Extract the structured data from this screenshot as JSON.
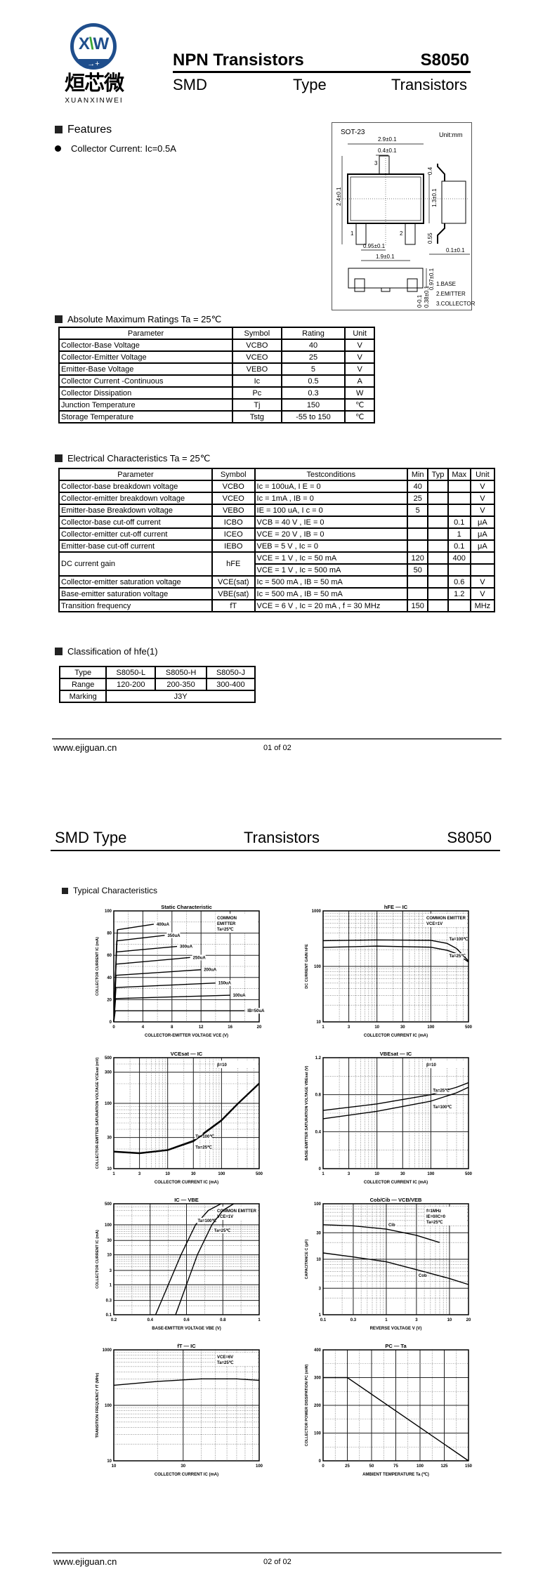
{
  "logo": {
    "mark_x": "X",
    "mark_mid": "\\",
    "mark_w": "W",
    "arrow": "→+",
    "chinese": "烜芯微",
    "english": "XUANXINWEI"
  },
  "header": {
    "title": "NPN Transistors",
    "part": "S8050",
    "sub_left": "SMD",
    "sub_mid": "Type",
    "sub_right": "Transistors"
  },
  "features": {
    "heading": "Features",
    "items": [
      "Collector Current: Ic=0.5A"
    ]
  },
  "package": {
    "name": "SOT-23",
    "unit": "Unit:mm",
    "dims": {
      "w": "2.9±0.1",
      "lead": "0.4±0.1",
      "h": "2.4±0.1",
      "body": "1.3±0.1",
      "pitch": "0.95±0.1",
      "span": "1.9±0.1",
      "top": "0.4",
      "bot": "0.55",
      "thick": "0.1±0.1",
      "ht": "0.97±0.1",
      "stand": "0-0.1",
      "lw": "0.38±0.1"
    },
    "pins": [
      "1",
      "2",
      "3"
    ],
    "legend": [
      "1.BASE",
      "2.EMITTER",
      "3.COLLECTOR"
    ]
  },
  "abs_max": {
    "heading": "Absolute Maximum Ratings Ta = 25℃",
    "columns": [
      "Parameter",
      "Symbol",
      "Rating",
      "Unit"
    ],
    "rows": [
      [
        "Collector-Base Voltage",
        "VCBO",
        "40",
        "V"
      ],
      [
        "Collector-Emitter Voltage",
        "VCEO",
        "25",
        "V"
      ],
      [
        "Emitter-Base Voltage",
        "VEBO",
        "5",
        "V"
      ],
      [
        "Collector Current -Continuous",
        "Ic",
        "0.5",
        "A"
      ],
      [
        "Collector Dissipation",
        "Pc",
        "0.3",
        "W"
      ],
      [
        "Junction Temperature",
        "Tj",
        "150",
        "℃"
      ],
      [
        "Storage Temperature",
        "Tstg",
        "-55 to 150",
        "℃"
      ]
    ]
  },
  "electrical": {
    "heading": "Electrical Characteristics Ta = 25℃",
    "columns": [
      "Parameter",
      "Symbol",
      "Testconditions",
      "Min",
      "Typ",
      "Max",
      "Unit"
    ],
    "rows": [
      [
        "Collector-base breakdown voltage",
        "VCBO",
        "Ic = 100uA, I E = 0",
        "40",
        "",
        "",
        "V"
      ],
      [
        "Collector-emitter breakdown voltage",
        "VCEO",
        "Ic = 1mA , IB = 0",
        "25",
        "",
        "",
        "V"
      ],
      [
        "Emitter-base Breakdown voltage",
        "VEBO",
        "IE = 100 uA, I c = 0",
        "5",
        "",
        "",
        "V"
      ],
      [
        "Collector-base cut-off current",
        "ICBO",
        "VCB = 40 V , IE = 0",
        "",
        "",
        "0.1",
        "μA"
      ],
      [
        "Collector-emitter cut-off current",
        "ICEO",
        "VCE = 20 V , IB = 0",
        "",
        "",
        "1",
        "μA"
      ],
      [
        "Emitter-base cut-off current",
        "IEBO",
        "VEB = 5 V , Ic = 0",
        "",
        "",
        "0.1",
        "μA"
      ],
      [
        "DC current gain",
        "hFE",
        "VCE = 1 V , Ic = 50 mA",
        "120",
        "",
        "400",
        ""
      ],
      [
        null,
        null,
        "VCE = 1 V , Ic = 500 mA",
        "50",
        "",
        "",
        ""
      ],
      [
        "Collector-emitter saturation voltage",
        "VCE(sat)",
        "Ic = 500 mA , IB = 50 mA",
        "",
        "",
        "0.6",
        "V"
      ],
      [
        "Base-emitter saturation voltage",
        "VBE(sat)",
        "Ic = 500 mA , IB = 50 mA",
        "",
        "",
        "1.2",
        "V"
      ],
      [
        "Transition frequency",
        "fT",
        "VCE = 6 V , Ic = 20 mA , f = 30 MHz",
        "150",
        "",
        "",
        "MHz"
      ]
    ]
  },
  "classification": {
    "heading": "Classification of hfe(1)",
    "rows": [
      [
        "Type",
        "S8050-L",
        "S8050-H",
        "S8050-J"
      ],
      [
        "Range",
        "120-200",
        "200-350",
        "300-400"
      ],
      [
        "Marking",
        "J3Y"
      ]
    ]
  },
  "footer1": {
    "site": "www.ejiguan.cn",
    "page": "01 of 02"
  },
  "page2_header": {
    "left": "SMD Type",
    "mid": "Transistors",
    "right": "S8050"
  },
  "typical_heading": "Typical Characteristics",
  "footer2": {
    "site": "www.ejiguan.cn",
    "page": "02 of 02"
  },
  "chart_data": [
    {
      "type": "line",
      "title": "Static Characteristic",
      "xlabel": "COLLECTOR-EMITTER VOLTAGE  VCE  (V)",
      "ylabel": "COLLECTOR CURRENT  IC  (mA)",
      "xscale": "linear",
      "yscale": "linear",
      "xlim": [
        0,
        20
      ],
      "ylim": [
        0,
        100
      ],
      "xticks": [
        0,
        4,
        8,
        12,
        16,
        20
      ],
      "yticks": [
        0,
        20,
        40,
        60,
        80,
        100
      ],
      "grid": true,
      "annotations": [
        "COMMON",
        "EMITTER",
        "Ta=25℃"
      ],
      "series": [
        {
          "name": "IB=50uA",
          "points": [
            [
              0,
              0
            ],
            [
              0.2,
              10
            ],
            [
              18,
              10
            ]
          ]
        },
        {
          "name": "100uA",
          "points": [
            [
              0,
              0
            ],
            [
              0.25,
              21
            ],
            [
              16,
              24
            ]
          ]
        },
        {
          "name": "150uA",
          "points": [
            [
              0,
              0
            ],
            [
              0.3,
              31
            ],
            [
              14,
              35
            ]
          ]
        },
        {
          "name": "200uA",
          "points": [
            [
              0,
              0
            ],
            [
              0.3,
              42
            ],
            [
              12,
              47
            ]
          ]
        },
        {
          "name": "250uA",
          "points": [
            [
              0,
              0
            ],
            [
              0.3,
              52
            ],
            [
              10.5,
              58
            ]
          ]
        },
        {
          "name": "300uA",
          "points": [
            [
              0,
              0
            ],
            [
              0.35,
              63
            ],
            [
              8.7,
              68
            ]
          ]
        },
        {
          "name": "350uA",
          "points": [
            [
              0,
              0
            ],
            [
              0.4,
              73
            ],
            [
              7,
              78
            ]
          ]
        },
        {
          "name": "400uA",
          "points": [
            [
              0,
              0
            ],
            [
              0.5,
              83
            ],
            [
              5.5,
              88
            ]
          ]
        }
      ]
    },
    {
      "type": "line",
      "title": "hFE — IC",
      "xlabel": "COLLECTOR CURRENT  IC  (mA)",
      "ylabel": "DC CURRENT GAIN  hFE",
      "xscale": "log",
      "yscale": "log",
      "xlim": [
        1,
        500
      ],
      "ylim": [
        10,
        1000
      ],
      "xticks": [
        1,
        3,
        10,
        30,
        100,
        500
      ],
      "yticks": [
        10,
        100,
        1000
      ],
      "grid": true,
      "annotations": [
        "COMMON EMITTER",
        "VCE=1V"
      ],
      "series": [
        {
          "name": "Ta=100℃",
          "points": [
            [
              1,
              290
            ],
            [
              10,
              300
            ],
            [
              100,
              295
            ],
            [
              200,
              260
            ],
            [
              300,
              210
            ],
            [
              500,
              125
            ]
          ]
        },
        {
          "name": "Ta=25℃",
          "points": [
            [
              1,
              220
            ],
            [
              10,
              232
            ],
            [
              100,
              222
            ],
            [
              200,
              195
            ],
            [
              300,
              170
            ],
            [
              500,
              120
            ]
          ]
        }
      ]
    },
    {
      "type": "line",
      "title": "VCEsat — IC",
      "xlabel": "COLLECTOR CURRENT  IC  (mA)",
      "ylabel": "COLLECTOR-EMITTER SATURATION VOLTAGE  VCEsat  (mV)",
      "xscale": "log",
      "yscale": "log",
      "xlim": [
        1,
        500
      ],
      "ylim": [
        10,
        500
      ],
      "xticks": [
        1,
        3,
        10,
        30,
        100,
        500
      ],
      "yticks": [
        10,
        30,
        100,
        300,
        500
      ],
      "grid": true,
      "annotations": [
        "β=10"
      ],
      "series": [
        {
          "name": "Ta=100℃",
          "points": [
            [
              1,
              18.5
            ],
            [
              3,
              17.5
            ],
            [
              10,
              19.5
            ],
            [
              30,
              27
            ],
            [
              100,
              56
            ],
            [
              200,
              100
            ],
            [
              500,
              205
            ]
          ]
        },
        {
          "name": "Ta=25℃",
          "points": [
            [
              1,
              18
            ],
            [
              3,
              17
            ],
            [
              10,
              19
            ],
            [
              30,
              26
            ],
            [
              100,
              54
            ],
            [
              200,
              97
            ],
            [
              500,
              198
            ]
          ]
        }
      ]
    },
    {
      "type": "line",
      "title": "VBEsat — IC",
      "xlabel": "COLLECTOR CURRENT  IC  (mA)",
      "ylabel": "BASE-EMITTER SATURATION VOLTAGE  VBEsat  (V)",
      "xscale": "log",
      "yscale": "linear",
      "xlim": [
        1,
        500
      ],
      "ylim": [
        0,
        1.2
      ],
      "xticks": [
        1,
        3,
        10,
        30,
        100,
        500
      ],
      "yticks": [
        0.0,
        0.4,
        0.8,
        1.2
      ],
      "grid": true,
      "annotations": [
        "β=10"
      ],
      "series": [
        {
          "name": "Ta=25℃",
          "points": [
            [
              1,
              0.63
            ],
            [
              10,
              0.7
            ],
            [
              100,
              0.8
            ],
            [
              300,
              0.88
            ],
            [
              500,
              0.93
            ]
          ]
        },
        {
          "name": "Ta=100℃",
          "points": [
            [
              1,
              0.54
            ],
            [
              10,
              0.62
            ],
            [
              100,
              0.73
            ],
            [
              300,
              0.82
            ],
            [
              500,
              0.88
            ]
          ]
        }
      ]
    },
    {
      "type": "line",
      "title": "IC — VBE",
      "xlabel": "BASE-EMITTER VOLTAGE  VBE  (V)",
      "ylabel": "COLLECTOR CURRENT  IC  (mA)",
      "xscale": "linear",
      "yscale": "log",
      "xlim": [
        0.2,
        1.0
      ],
      "ylim": [
        0.1,
        500
      ],
      "xticks": [
        0.2,
        0.4,
        0.6,
        0.8,
        1.0
      ],
      "yticks": [
        0.1,
        0.3,
        1,
        3,
        10,
        30,
        100,
        500
      ],
      "grid": true,
      "annotations": [
        "COMMON EMITTER",
        "VCE=1V"
      ],
      "series": [
        {
          "name": "Ta=100℃",
          "points": [
            [
              0.43,
              0.1
            ],
            [
              0.5,
              1
            ],
            [
              0.57,
              10
            ],
            [
              0.65,
              100
            ],
            [
              0.72,
              300
            ],
            [
              0.79,
              500
            ]
          ]
        },
        {
          "name": "Ta=25℃",
          "points": [
            [
              0.54,
              0.1
            ],
            [
              0.6,
              1
            ],
            [
              0.66,
              10
            ],
            [
              0.74,
              100
            ],
            [
              0.8,
              300
            ],
            [
              0.86,
              500
            ]
          ]
        }
      ]
    },
    {
      "type": "line",
      "title": "Cob/Cib — VCB/VEB",
      "xlabel": "REVERSE VOLTAGE  V  (V)",
      "ylabel": "CAPACITANCE  C  (pF)",
      "xscale": "log",
      "yscale": "log",
      "xlim": [
        0.1,
        20
      ],
      "ylim": [
        1,
        100
      ],
      "xticks": [
        0.1,
        0.3,
        1,
        3,
        10,
        20
      ],
      "yticks": [
        1,
        3,
        10,
        30,
        100
      ],
      "grid": true,
      "annotations": [
        "f=1MHz",
        "IE=0/IC=0",
        "Ta=25℃"
      ],
      "series": [
        {
          "name": "Cib",
          "points": [
            [
              0.1,
              42
            ],
            [
              0.3,
              40
            ],
            [
              1,
              35
            ],
            [
              3,
              27
            ],
            [
              7,
              20
            ]
          ]
        },
        {
          "name": "Cob",
          "points": [
            [
              0.1,
              13
            ],
            [
              0.3,
              11
            ],
            [
              1,
              9
            ],
            [
              3,
              6.5
            ],
            [
              10,
              4.5
            ],
            [
              20,
              3.5
            ]
          ]
        }
      ]
    },
    {
      "type": "line",
      "title": "fT — IC",
      "xlabel": "COLLECTOR CURRENT  IC  (mA)",
      "ylabel": "TRANSITION FREQUENCY  fT  (MHz)",
      "xscale": "log",
      "yscale": "log",
      "xlim": [
        10,
        100
      ],
      "ylim": [
        10,
        1000
      ],
      "xticks": [
        10,
        30,
        100
      ],
      "yticks": [
        10,
        100,
        1000
      ],
      "grid": true,
      "annotations": [
        "VCE=6V",
        "Ta=25℃"
      ],
      "series": [
        {
          "name": "",
          "points": [
            [
              10,
              230
            ],
            [
              20,
              270
            ],
            [
              40,
              300
            ],
            [
              70,
              300
            ],
            [
              100,
              282
            ]
          ]
        }
      ]
    },
    {
      "type": "line",
      "title": "PC — Ta",
      "xlabel": "AMBIENT TEMPERATURE  Ta  (℃)",
      "ylabel": "COLLECTOR POWER DISSIPATION  PC  (mW)",
      "xscale": "linear",
      "yscale": "linear",
      "xlim": [
        0,
        150
      ],
      "ylim": [
        0,
        400
      ],
      "xticks": [
        0,
        25,
        50,
        75,
        100,
        125,
        150
      ],
      "yticks": [
        0,
        100,
        200,
        300,
        400
      ],
      "grid": true,
      "annotations": [],
      "series": [
        {
          "name": "",
          "points": [
            [
              0,
              300
            ],
            [
              25,
              300
            ],
            [
              150,
              0
            ]
          ]
        }
      ]
    }
  ]
}
